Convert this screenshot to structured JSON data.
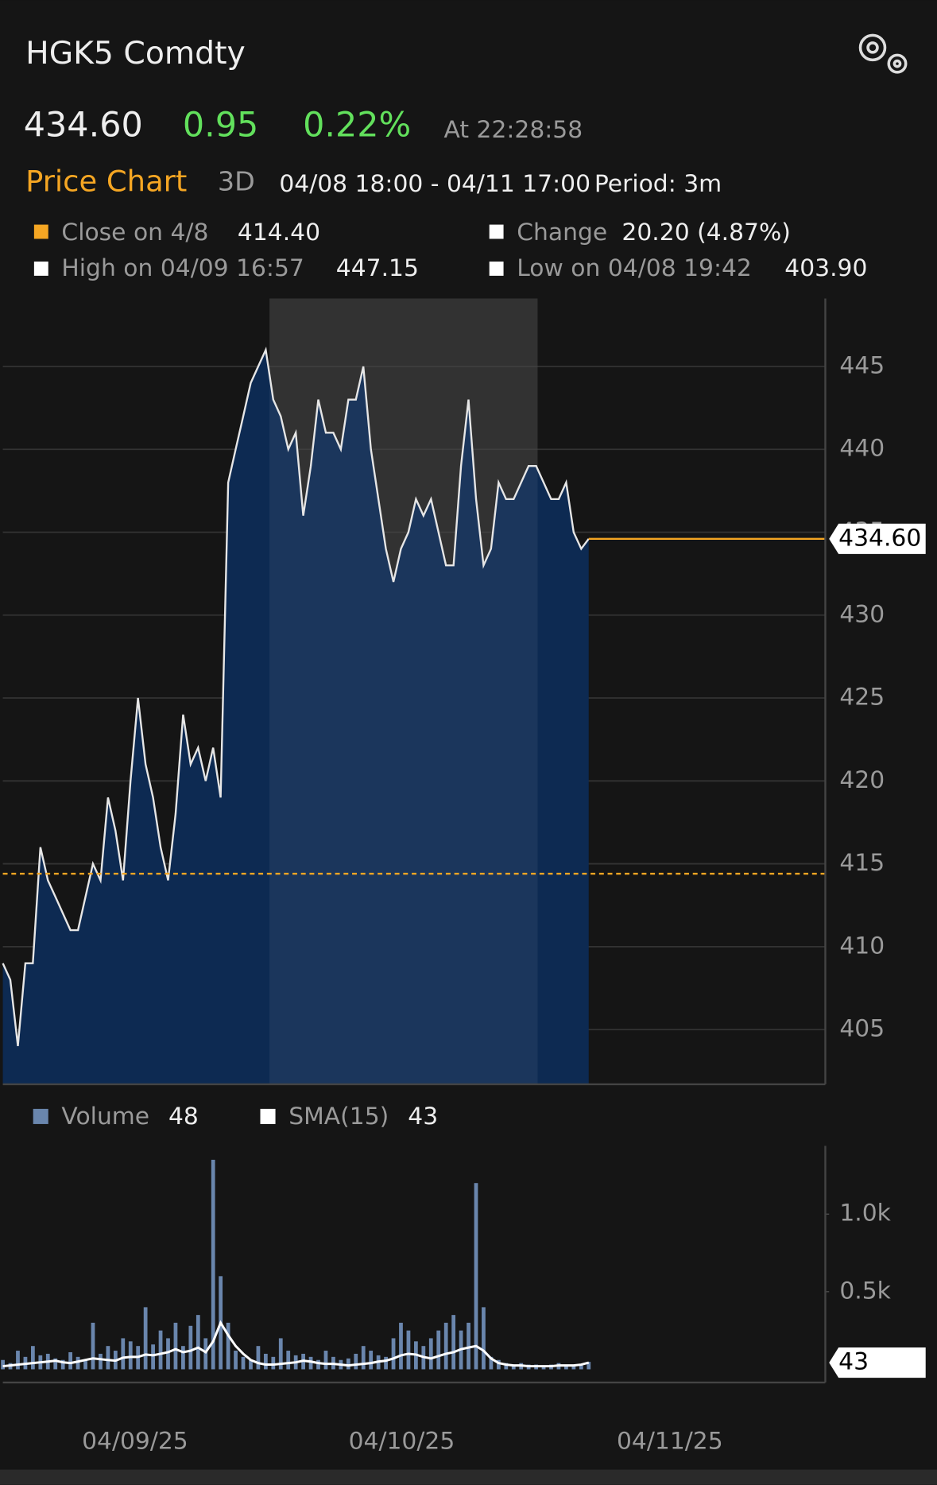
{
  "header": {
    "ticker": "HGK5 Comdty",
    "price": "434.60",
    "change": "0.95",
    "change_pct": "0.22%",
    "time": "At 22:28:58",
    "chart_name": "Price Chart",
    "range": "3D",
    "window": "04/08 18:00 - 04/11 17:00",
    "period": "Period: 3m"
  },
  "legend": {
    "close_label": "Close on 4/8",
    "close_value": "414.40",
    "change_label": "Change",
    "change_value": "20.20 (4.87%)",
    "high_label": "High on 04/09 16:57",
    "high_value": "447.15",
    "low_label": "Low on 04/08 19:42",
    "low_value": "403.90"
  },
  "chart_data": [
    {
      "type": "area",
      "color": "#e6e6e6",
      "fill": "#0d2a52",
      "line_color": "#f5a623",
      "series": [
        {
          "name": "Price",
          "values": [
            409,
            408,
            404,
            409,
            409,
            416,
            414,
            413,
            412,
            411,
            411,
            413,
            415,
            414,
            419,
            417,
            414,
            420,
            425,
            421,
            419,
            416,
            414,
            418,
            424,
            421,
            422,
            420,
            422,
            419,
            438,
            440,
            442,
            444,
            445,
            446,
            443,
            442,
            440,
            441,
            436,
            439,
            443,
            441,
            441,
            440,
            443,
            443,
            445,
            440,
            437,
            434,
            432,
            434,
            435,
            437,
            436,
            437,
            435,
            433,
            433,
            439,
            443,
            437,
            433,
            434,
            438,
            437,
            437,
            438,
            439,
            439,
            438,
            437,
            437,
            438,
            435,
            434,
            434.6
          ]
        }
      ],
      "xlim": [
        0,
        109.5
      ],
      "xticks": [
        {
          "value": 17.6,
          "label": "04/09/25"
        },
        {
          "value": 53.1,
          "label": "04/10/25"
        },
        {
          "value": 88.8,
          "label": "04/11/25"
        }
      ],
      "shaded_range": [
        35.5,
        71.2
      ],
      "ylim": [
        401.7,
        449.1
      ],
      "yticks": [
        405,
        410,
        415,
        420,
        425,
        430,
        435,
        440,
        445
      ],
      "reference_line": 414.4,
      "current_price": {
        "value": 434.6,
        "label": "434.60"
      },
      "grid": true
    },
    {
      "type": "bar",
      "series": [
        {
          "name": "Volume",
          "color": "#6a86ad",
          "values": [
            60,
            40,
            120,
            80,
            150,
            90,
            100,
            70,
            60,
            110,
            80,
            60,
            300,
            100,
            150,
            120,
            200,
            180,
            150,
            400,
            160,
            250,
            200,
            300,
            150,
            280,
            350,
            200,
            1350,
            600,
            300,
            120,
            80,
            60,
            150,
            100,
            80,
            200,
            120,
            90,
            100,
            80,
            60,
            120,
            80,
            60,
            70,
            100,
            150,
            120,
            90,
            80,
            200,
            300,
            250,
            180,
            150,
            200,
            250,
            300,
            350,
            250,
            300,
            1200,
            400,
            80,
            60,
            40,
            30,
            40,
            30,
            30,
            25,
            30,
            40,
            30,
            30,
            25,
            48
          ]
        },
        {
          "name": "SMA(15)",
          "color": "#ffffff",
          "values": [
            20,
            25,
            30,
            35,
            40,
            45,
            50,
            55,
            45,
            40,
            50,
            60,
            70,
            65,
            60,
            55,
            75,
            80,
            80,
            95,
            90,
            100,
            110,
            130,
            110,
            120,
            140,
            110,
            180,
            300,
            220,
            150,
            100,
            60,
            40,
            30,
            30,
            35,
            40,
            45,
            55,
            50,
            40,
            35,
            35,
            30,
            25,
            30,
            35,
            40,
            50,
            55,
            70,
            90,
            100,
            95,
            80,
            70,
            85,
            100,
            110,
            130,
            140,
            150,
            120,
            70,
            40,
            30,
            25,
            25,
            20,
            20,
            20,
            20,
            25,
            25,
            25,
            30,
            43
          ]
        }
      ],
      "xlim": [
        0,
        109.5
      ],
      "ylim": [
        -85,
        1440
      ],
      "yticks": [
        {
          "value": 500,
          "label": "0.5k"
        },
        {
          "value": 1000,
          "label": "1.0k"
        }
      ]
    }
  ]
}
